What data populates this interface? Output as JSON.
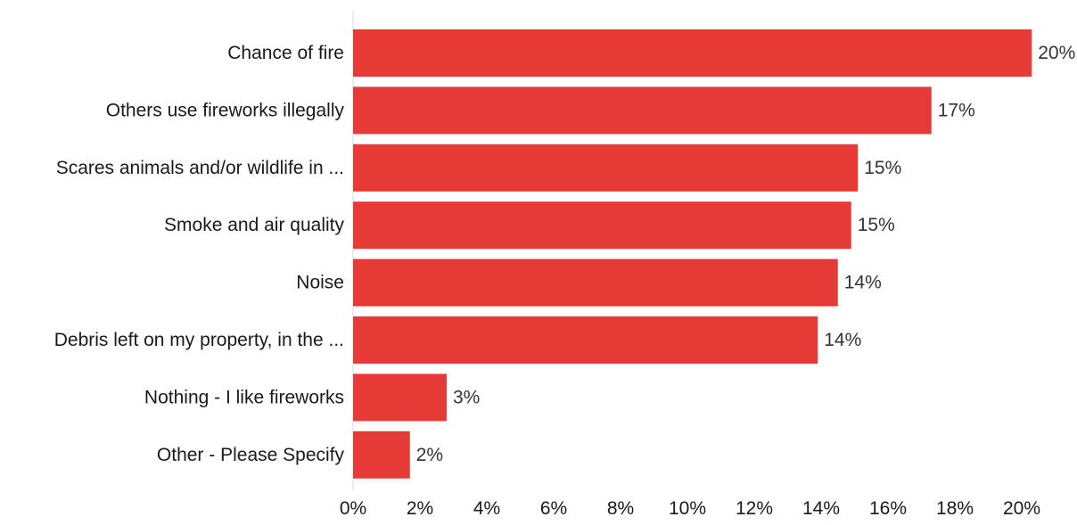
{
  "chart_data": {
    "type": "bar",
    "orientation": "horizontal",
    "categories": [
      "Chance of fire",
      "Others use fireworks illegally",
      "Scares animals and/or wildlife in ...",
      "Smoke and air quality",
      "Noise",
      "Debris left on my property, in the ...",
      "Nothing - I like fireworks",
      "Other - Please Specify"
    ],
    "values": [
      20.3,
      17.3,
      15.1,
      14.9,
      14.5,
      13.9,
      2.8,
      1.7
    ],
    "value_labels": [
      "20%",
      "17%",
      "15%",
      "15%",
      "14%",
      "14%",
      "3%",
      "2%"
    ],
    "xlim": [
      0,
      21
    ],
    "xticks": [
      0,
      2,
      4,
      6,
      8,
      10,
      12,
      14,
      16,
      18,
      20
    ],
    "xtick_labels": [
      "0%",
      "2%",
      "4%",
      "6%",
      "8%",
      "10%",
      "12%",
      "14%",
      "16%",
      "18%",
      "20%"
    ],
    "bar_color": "#e53a35",
    "grid": false,
    "legend": "none"
  }
}
